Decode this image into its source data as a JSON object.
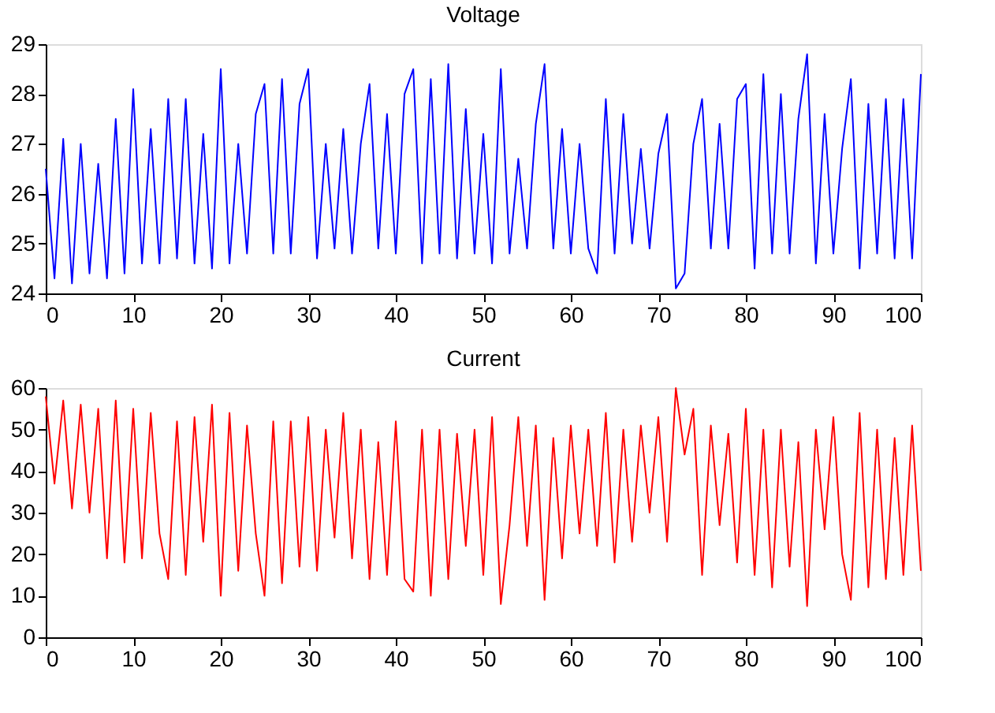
{
  "chart_data": [
    {
      "type": "line",
      "title": "Voltage",
      "x": [
        0,
        1,
        2,
        3,
        4,
        5,
        6,
        7,
        8,
        9,
        10,
        11,
        12,
        13,
        14,
        15,
        16,
        17,
        18,
        19,
        20,
        21,
        22,
        23,
        24,
        25,
        26,
        27,
        28,
        29,
        30,
        31,
        32,
        33,
        34,
        35,
        36,
        37,
        38,
        39,
        40,
        41,
        42,
        43,
        44,
        45,
        46,
        47,
        48,
        49,
        50,
        51,
        52,
        53,
        54,
        55,
        56,
        57,
        58,
        59,
        60,
        61,
        62,
        63,
        64,
        65,
        66,
        67,
        68,
        69,
        70,
        71,
        72,
        73,
        74,
        75,
        76,
        77,
        78,
        79,
        80,
        81,
        82,
        83,
        84,
        85,
        86,
        87,
        88,
        89,
        90,
        91,
        92,
        93,
        94,
        95,
        96,
        97,
        98,
        99,
        100
      ],
      "series": [
        {
          "color": "#0000ff",
          "values": [
            26.5,
            24.3,
            27.1,
            24.2,
            27.0,
            24.4,
            26.6,
            24.3,
            27.5,
            24.4,
            28.1,
            24.6,
            27.3,
            24.6,
            27.9,
            24.7,
            27.9,
            24.6,
            27.2,
            24.5,
            28.5,
            24.6,
            27.0,
            24.8,
            27.6,
            28.2,
            24.8,
            28.3,
            24.8,
            27.8,
            28.5,
            24.7,
            27.0,
            24.9,
            27.3,
            24.8,
            27.0,
            28.2,
            24.9,
            27.6,
            24.8,
            28.0,
            28.5,
            24.6,
            28.3,
            24.8,
            28.6,
            24.7,
            27.7,
            24.8,
            27.2,
            24.6,
            28.5,
            24.8,
            26.7,
            24.9,
            27.4,
            28.6,
            24.9,
            27.3,
            24.8,
            27.0,
            24.9,
            24.4,
            27.9,
            24.8,
            27.6,
            25.0,
            26.9,
            24.9,
            26.8,
            27.6,
            24.1,
            24.4,
            27.0,
            27.9,
            24.9,
            27.4,
            24.9,
            27.9,
            28.2,
            24.5,
            28.4,
            24.8,
            28.0,
            24.8,
            27.5,
            28.8,
            24.6,
            27.6,
            24.8,
            26.9,
            28.3,
            24.5,
            27.8,
            24.8,
            27.9,
            24.7,
            27.9,
            24.7,
            28.4
          ]
        }
      ],
      "xlim": [
        0,
        100
      ],
      "xticks": [
        0,
        10,
        20,
        30,
        40,
        50,
        60,
        70,
        80,
        90,
        100
      ],
      "ylim": [
        24,
        29
      ],
      "yticks": [
        24,
        25,
        26,
        27,
        28,
        29
      ],
      "grid": false
    },
    {
      "type": "line",
      "title": "Current",
      "x": [
        0,
        1,
        2,
        3,
        4,
        5,
        6,
        7,
        8,
        9,
        10,
        11,
        12,
        13,
        14,
        15,
        16,
        17,
        18,
        19,
        20,
        21,
        22,
        23,
        24,
        25,
        26,
        27,
        28,
        29,
        30,
        31,
        32,
        33,
        34,
        35,
        36,
        37,
        38,
        39,
        40,
        41,
        42,
        43,
        44,
        45,
        46,
        47,
        48,
        49,
        50,
        51,
        52,
        53,
        54,
        55,
        56,
        57,
        58,
        59,
        60,
        61,
        62,
        63,
        64,
        65,
        66,
        67,
        68,
        69,
        70,
        71,
        72,
        73,
        74,
        75,
        76,
        77,
        78,
        79,
        80,
        81,
        82,
        83,
        84,
        85,
        86,
        87,
        88,
        89,
        90,
        91,
        92,
        93,
        94,
        95,
        96,
        97,
        98,
        99,
        100
      ],
      "series": [
        {
          "color": "#ff0000",
          "values": [
            58,
            37,
            57,
            31,
            56,
            30,
            55,
            19,
            57,
            18,
            55,
            19,
            54,
            25,
            14,
            52,
            15,
            53,
            23,
            56,
            10,
            54,
            16,
            51,
            25,
            10,
            52,
            13,
            52,
            17,
            53,
            16,
            50,
            24,
            54,
            19,
            50,
            14,
            47,
            15,
            52,
            14,
            11,
            50,
            10,
            50,
            14,
            49,
            22,
            50,
            15,
            53,
            8,
            27,
            53,
            22,
            51,
            9,
            48,
            19,
            51,
            25,
            50,
            22,
            54,
            18,
            50,
            23,
            51,
            30,
            53,
            23,
            60,
            44,
            55,
            15,
            51,
            27,
            49,
            18,
            55,
            15,
            50,
            12,
            50,
            17,
            47,
            7.5,
            50,
            26,
            53,
            20,
            9,
            54,
            12,
            50,
            14,
            48,
            15,
            51,
            16
          ]
        }
      ],
      "xlim": [
        0,
        100
      ],
      "xticks": [
        0,
        10,
        20,
        30,
        40,
        50,
        60,
        70,
        80,
        90,
        100
      ],
      "ylim": [
        0,
        60
      ],
      "yticks": [
        0,
        10,
        20,
        30,
        40,
        50,
        60
      ],
      "grid": false
    }
  ]
}
